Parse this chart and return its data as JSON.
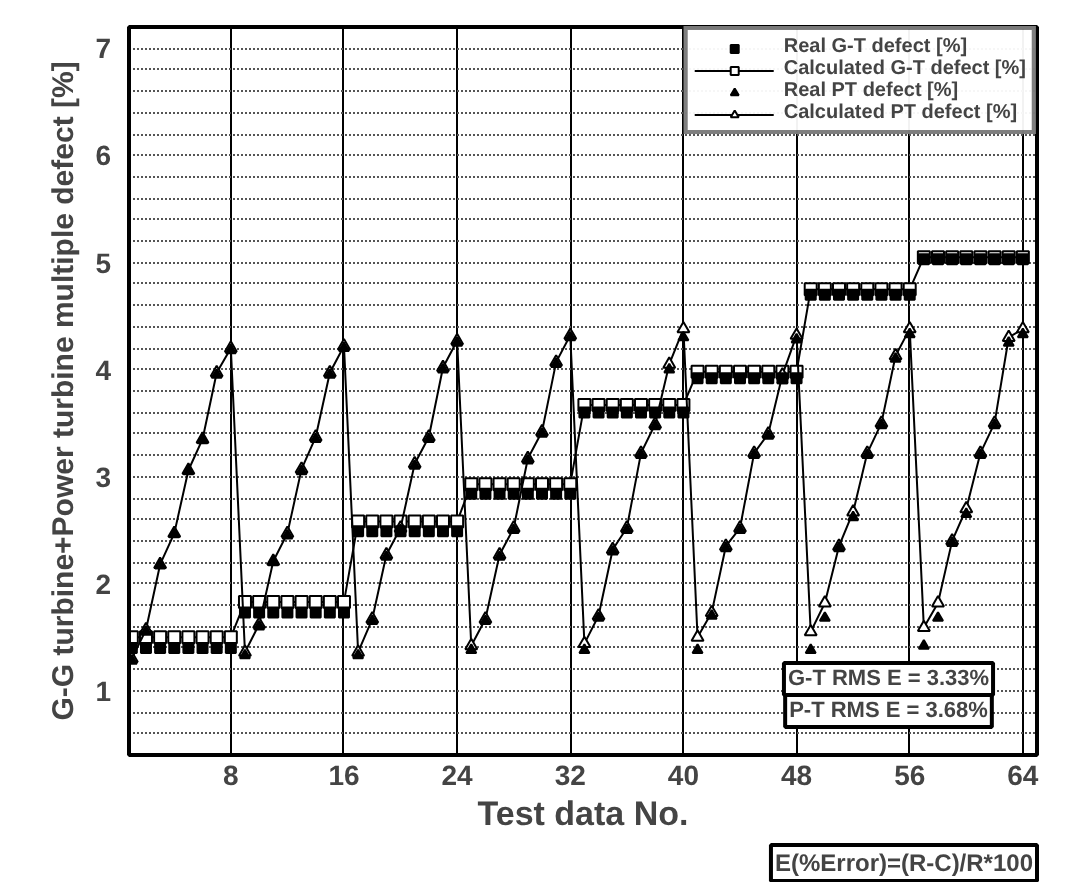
{
  "chart_data": {
    "type": "line",
    "xlabel": "Test data No.",
    "ylabel": "G-G turbine+Power turbine multiple defect [%]",
    "x": [
      1,
      2,
      3,
      4,
      5,
      6,
      7,
      8,
      9,
      10,
      11,
      12,
      13,
      14,
      15,
      16,
      17,
      18,
      19,
      20,
      21,
      22,
      23,
      24,
      25,
      26,
      27,
      28,
      29,
      30,
      31,
      32,
      33,
      34,
      35,
      36,
      37,
      38,
      39,
      40,
      41,
      42,
      43,
      44,
      45,
      46,
      47,
      48,
      49,
      50,
      51,
      52,
      53,
      54,
      55,
      56,
      57,
      58,
      59,
      60,
      61,
      62,
      63,
      64
    ],
    "xlim": [
      0.8,
      65
    ],
    "xticks": [
      8,
      16,
      24,
      32,
      40,
      48,
      56,
      64
    ],
    "ylim": [
      0.4,
      7.2
    ],
    "yticks": [
      1,
      2,
      3,
      4,
      5,
      6,
      7
    ],
    "grid": true,
    "legend": "top right",
    "series": [
      {
        "name": "Real G-T defect [%]",
        "type": "scatter",
        "marker": "square",
        "color": "#000000",
        "values": [
          1.4,
          1.4,
          1.4,
          1.4,
          1.4,
          1.4,
          1.4,
          1.4,
          1.73,
          1.73,
          1.73,
          1.73,
          1.73,
          1.73,
          1.73,
          1.73,
          2.49,
          2.49,
          2.49,
          2.49,
          2.49,
          2.49,
          2.49,
          2.49,
          2.84,
          2.84,
          2.84,
          2.84,
          2.84,
          2.84,
          2.84,
          2.84,
          3.6,
          3.6,
          3.6,
          3.6,
          3.6,
          3.6,
          3.6,
          3.6,
          3.92,
          3.92,
          3.92,
          3.92,
          3.92,
          3.92,
          3.92,
          3.92,
          4.7,
          4.7,
          4.7,
          4.7,
          4.7,
          4.7,
          4.7,
          4.7,
          5.03,
          5.03,
          5.03,
          5.03,
          5.03,
          5.03,
          5.03,
          5.03
        ]
      },
      {
        "name": "Calculated G-T defect [%]",
        "marker": "square",
        "color": "#000000",
        "values": [
          1.5,
          1.5,
          1.5,
          1.5,
          1.5,
          1.5,
          1.5,
          1.5,
          1.83,
          1.83,
          1.83,
          1.83,
          1.83,
          1.83,
          1.83,
          1.83,
          2.58,
          2.58,
          2.58,
          2.58,
          2.58,
          2.58,
          2.58,
          2.58,
          2.93,
          2.93,
          2.93,
          2.93,
          2.93,
          2.93,
          2.93,
          2.93,
          3.67,
          3.67,
          3.67,
          3.67,
          3.67,
          3.67,
          3.67,
          3.67,
          3.98,
          3.98,
          3.98,
          3.98,
          3.98,
          3.98,
          3.98,
          3.98,
          4.75,
          4.75,
          4.75,
          4.75,
          4.75,
          4.75,
          4.75,
          4.75,
          5.05,
          5.05,
          5.05,
          5.05,
          5.05,
          5.05,
          5.05,
          5.05
        ]
      },
      {
        "name": "Real PT defect [%]",
        "type": "scatter",
        "marker": "triangle",
        "color": "#000000",
        "values": [
          1.28,
          1.55,
          2.17,
          2.46,
          3.05,
          3.34,
          3.95,
          4.18,
          1.33,
          1.6,
          2.2,
          2.45,
          3.05,
          3.35,
          3.95,
          4.2,
          1.33,
          1.65,
          2.25,
          2.5,
          3.1,
          3.35,
          4.0,
          4.25,
          1.38,
          1.65,
          2.25,
          2.5,
          3.15,
          3.4,
          4.05,
          4.3,
          1.38,
          1.68,
          2.3,
          2.5,
          3.2,
          3.47,
          4.0,
          4.3,
          1.38,
          1.7,
          2.33,
          2.5,
          3.2,
          3.38,
          3.9,
          4.28,
          1.38,
          1.68,
          2.33,
          2.62,
          3.2,
          3.48,
          4.1,
          4.33,
          1.42,
          1.68,
          2.38,
          2.65,
          3.2,
          3.48,
          4.25,
          4.33
        ]
      },
      {
        "name": "Calculated PT defect [%]",
        "marker": "triangle",
        "color": "#000000",
        "values": [
          1.3,
          1.57,
          2.18,
          2.47,
          3.06,
          3.35,
          3.97,
          4.2,
          1.36,
          1.62,
          2.21,
          2.47,
          3.07,
          3.37,
          3.97,
          4.22,
          1.36,
          1.67,
          2.27,
          2.52,
          3.12,
          3.37,
          4.02,
          4.27,
          1.42,
          1.67,
          2.27,
          2.52,
          3.17,
          3.42,
          4.07,
          4.32,
          1.44,
          1.7,
          2.32,
          2.52,
          3.22,
          3.49,
          4.05,
          4.38,
          1.5,
          1.73,
          2.35,
          2.52,
          3.22,
          3.4,
          3.95,
          4.32,
          1.55,
          1.82,
          2.35,
          2.67,
          3.22,
          3.5,
          4.13,
          4.38,
          1.59,
          1.82,
          2.4,
          2.7,
          3.22,
          3.5,
          4.3,
          4.38
        ]
      }
    ],
    "annotations": [
      "G-T RMS E = 3.33%",
      "P-T RMS E = 3.68%",
      "E(%Error)=(R-C)/R*100"
    ]
  }
}
